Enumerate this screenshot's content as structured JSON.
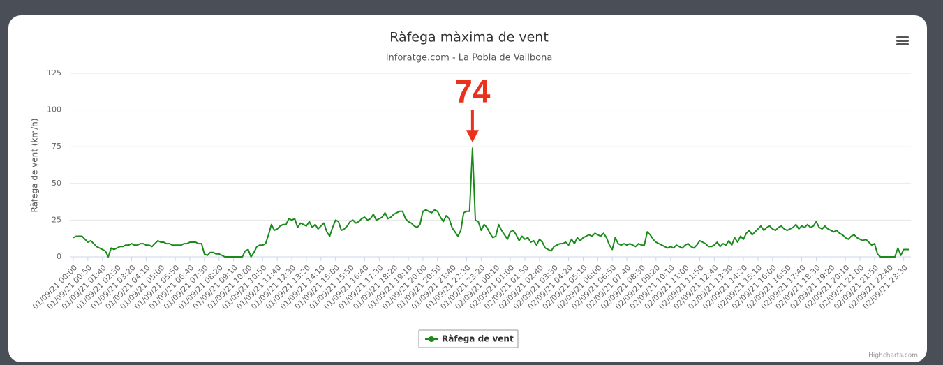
{
  "chart_data": {
    "type": "line",
    "title": "Ràfega màxima de vent",
    "subtitle": "Inforatge.com - La Pobla de Vallbona",
    "y_label": "Ràfega de vent (km/h)",
    "annotation": "74",
    "credits": "Highcharts.com",
    "ylim": [
      0,
      125
    ],
    "yticks": [
      0,
      25,
      50,
      75,
      100,
      125
    ],
    "grid": true,
    "categories": [
      "01/09/21 00:00",
      null,
      null,
      null,
      null,
      "01/09/21 00:50",
      null,
      null,
      null,
      null,
      "01/09/21 01:40",
      null,
      null,
      null,
      null,
      "01/09/21 02:30",
      null,
      null,
      null,
      null,
      "01/09/21 03:20",
      null,
      null,
      null,
      null,
      "01/09/21 04:10",
      null,
      null,
      null,
      null,
      "01/09/21 05:00",
      null,
      null,
      null,
      null,
      "01/09/21 05:50",
      null,
      null,
      null,
      null,
      "01/09/21 06:40",
      null,
      null,
      null,
      null,
      "01/09/21 07:30",
      null,
      null,
      null,
      null,
      "01/09/21 08:20",
      null,
      null,
      null,
      null,
      "01/09/21 09:10",
      null,
      null,
      null,
      null,
      "01/09/21 10:00",
      null,
      null,
      null,
      null,
      "01/09/21 10:50",
      null,
      null,
      null,
      null,
      "01/09/21 11:40",
      null,
      null,
      null,
      null,
      "01/09/21 12:30",
      null,
      null,
      null,
      null,
      "01/09/21 13:20",
      null,
      null,
      null,
      null,
      "01/09/21 14:10",
      null,
      null,
      null,
      null,
      "01/09/21 15:00",
      null,
      null,
      null,
      null,
      "01/09/21 15:50",
      null,
      null,
      null,
      null,
      "01/09/21 16:40",
      null,
      null,
      null,
      null,
      "01/09/21 17:30",
      null,
      null,
      null,
      null,
      "01/09/21 18:20",
      null,
      null,
      null,
      null,
      "01/09/21 19:10",
      null,
      null,
      null,
      null,
      "01/09/21 20:00",
      null,
      null,
      null,
      null,
      "01/09/21 20:50",
      null,
      null,
      null,
      null,
      "01/09/21 21:40",
      null,
      null,
      null,
      null,
      "01/09/21 22:30",
      null,
      null,
      null,
      null,
      "01/09/21 23:20",
      null,
      null,
      null,
      null,
      "02/09/21 00:10",
      null,
      null,
      null,
      null,
      "02/09/21 01:00",
      null,
      null,
      null,
      null,
      "02/09/21 01:50",
      null,
      null,
      null,
      null,
      "02/09/21 02:40",
      null,
      null,
      null,
      null,
      "02/09/21 03:30",
      null,
      null,
      null,
      null,
      "02/09/21 04:20",
      null,
      null,
      null,
      null,
      "02/09/21 05:10",
      null,
      null,
      null,
      null,
      "02/09/21 06:00",
      null,
      null,
      null,
      null,
      "02/09/21 06:50",
      null,
      null,
      null,
      null,
      "02/09/21 07:40",
      null,
      null,
      null,
      null,
      "02/09/21 08:30",
      null,
      null,
      null,
      null,
      "02/09/21 09:20",
      null,
      null,
      null,
      null,
      "02/09/21 10:10",
      null,
      null,
      null,
      null,
      "02/09/21 11:00",
      null,
      null,
      null,
      null,
      "02/09/21 11:50",
      null,
      null,
      null,
      null,
      "02/09/21 12:40",
      null,
      null,
      null,
      null,
      "02/09/21 13:30",
      null,
      null,
      null,
      null,
      "02/09/21 14:20",
      null,
      null,
      null,
      null,
      "02/09/21 15:10",
      null,
      null,
      null,
      null,
      "02/09/21 16:00",
      null,
      null,
      null,
      null,
      "02/09/21 16:50",
      null,
      null,
      null,
      null,
      "02/09/21 17:40",
      null,
      null,
      null,
      null,
      "02/09/21 18:30",
      null,
      null,
      null,
      null,
      "02/09/21 19:20",
      null,
      null,
      null,
      null,
      "02/09/21 20:10",
      null,
      null,
      null,
      null,
      "02/09/21 21:00",
      null,
      null,
      null,
      null,
      "02/09/21 21:50",
      null,
      null,
      null,
      null,
      "02/09/21 22:40",
      null,
      null,
      null,
      null,
      "02/09/21 23:30",
      null,
      null
    ],
    "series": [
      {
        "name": "Ràfega de vent",
        "color": "#1a8a1a",
        "values": [
          13,
          14,
          14,
          14,
          12,
          10,
          11,
          9,
          7,
          6,
          5,
          4,
          0,
          6,
          5,
          6,
          7,
          7,
          8,
          8,
          9,
          8,
          8,
          9,
          9,
          8,
          8,
          7,
          9,
          11,
          10,
          10,
          9,
          9,
          8,
          8,
          8,
          8,
          9,
          9,
          10,
          10,
          10,
          9,
          9,
          2,
          1,
          3,
          3,
          2,
          2,
          1,
          0,
          0,
          0,
          0,
          0,
          0,
          0,
          4,
          5,
          0,
          3,
          7,
          8,
          8,
          9,
          15,
          22,
          18,
          19,
          21,
          22,
          22,
          26,
          25,
          26,
          20,
          23,
          22,
          21,
          24,
          20,
          22,
          19,
          21,
          23,
          17,
          14,
          20,
          25,
          24,
          18,
          19,
          21,
          24,
          25,
          23,
          24,
          26,
          27,
          25,
          26,
          29,
          25,
          26,
          27,
          30,
          26,
          27,
          29,
          30,
          31,
          31,
          26,
          24,
          23,
          21,
          20,
          22,
          31,
          32,
          31,
          30,
          32,
          31,
          27,
          24,
          28,
          26,
          20,
          17,
          14,
          18,
          30,
          31,
          31,
          74,
          25,
          24,
          18,
          22,
          20,
          16,
          13,
          14,
          22,
          18,
          15,
          12,
          17,
          18,
          15,
          11,
          14,
          12,
          13,
          10,
          11,
          8,
          12,
          10,
          6,
          5,
          4,
          7,
          8,
          9,
          9,
          10,
          8,
          12,
          9,
          13,
          11,
          13,
          14,
          15,
          14,
          16,
          15,
          14,
          16,
          13,
          8,
          5,
          13,
          9,
          8,
          9,
          8,
          9,
          8,
          7,
          9,
          8,
          8,
          17,
          15,
          12,
          10,
          9,
          8,
          7,
          6,
          7,
          6,
          8,
          7,
          6,
          8,
          9,
          7,
          6,
          8,
          11,
          10,
          9,
          7,
          7,
          8,
          10,
          7,
          9,
          8,
          11,
          8,
          13,
          10,
          14,
          12,
          16,
          18,
          15,
          17,
          19,
          21,
          18,
          20,
          21,
          19,
          18,
          20,
          21,
          19,
          18,
          19,
          20,
          22,
          19,
          21,
          20,
          22,
          20,
          21,
          24,
          20,
          19,
          21,
          19,
          18,
          17,
          18,
          16,
          15,
          13,
          12,
          14,
          15,
          13,
          12,
          11,
          12,
          10,
          8,
          9,
          2,
          0,
          0,
          0,
          0,
          0,
          0,
          6,
          1,
          5,
          5,
          5
        ]
      }
    ]
  }
}
